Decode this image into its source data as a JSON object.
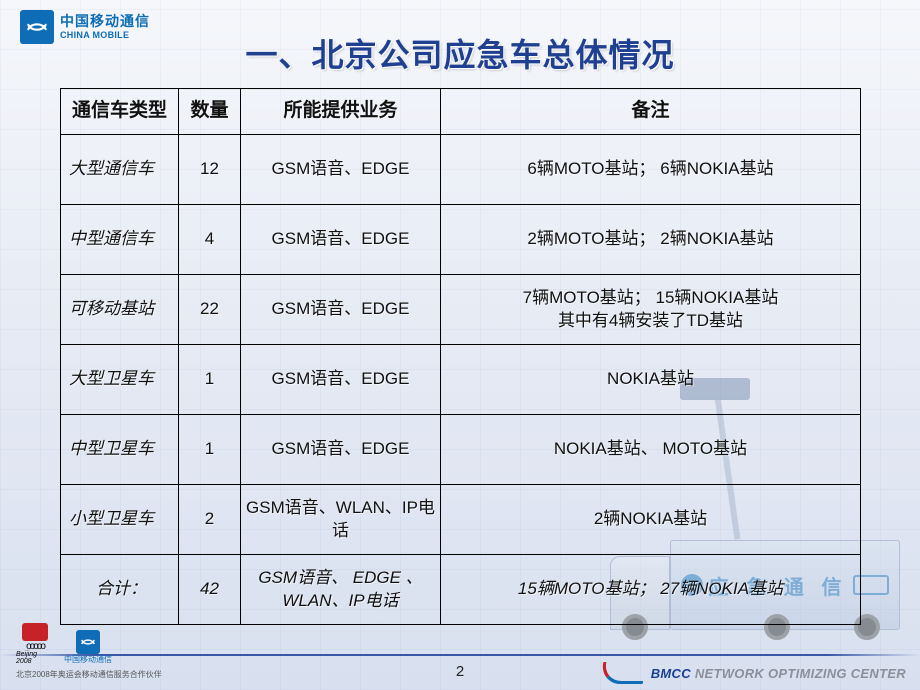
{
  "brand": {
    "cn": "中国移动通信",
    "en": "CHINA MOBILE"
  },
  "title": "一、北京公司应急车总体情况",
  "table": {
    "columns": [
      "通信车类型",
      "数量",
      "所能提供业务",
      "备注"
    ],
    "rows": [
      {
        "type": "大型通信车",
        "qty": "12",
        "service": "GSM语音、EDGE",
        "note": "6辆MOTO基站； 6辆NOKIA基站"
      },
      {
        "type": "中型通信车",
        "qty": "4",
        "service": "GSM语音、EDGE",
        "note": "2辆MOTO基站； 2辆NOKIA基站"
      },
      {
        "type": "可移动基站",
        "qty": "22",
        "service": "GSM语音、EDGE",
        "note": "7辆MOTO基站； 15辆NOKIA基站\n其中有4辆安装了TD基站"
      },
      {
        "type": "大型卫星车",
        "qty": "1",
        "service": "GSM语音、EDGE",
        "note": "NOKIA基站"
      },
      {
        "type": "中型卫星车",
        "qty": "1",
        "service": "GSM语音、EDGE",
        "note": "NOKIA基站、 MOTO基站"
      },
      {
        "type": "小型卫星车",
        "qty": "2",
        "service": "GSM语音、WLAN、IP电话",
        "note": "2辆NOKIA基站"
      }
    ],
    "total": {
      "type": "合计：",
      "qty": "42",
      "service": "GSM语音、 EDGE 、WLAN、IP电话",
      "note": "15辆MOTO基站； 27辆NOKIA基站"
    }
  },
  "page_number": "2",
  "footer_brand": {
    "main": "BMCC ",
    "rest": "NETWORK OPTIMIZING CENTER"
  },
  "bottom_left": {
    "beijing_label": "Beijing 2008",
    "cm_label": "中国移动通信",
    "caption": "北京2008年奥运会移动通信服务合作伙伴"
  },
  "truck_label": "应 急 通 信",
  "colors": {
    "title": "#1f3f91",
    "brand": "#0e6db6",
    "border": "#000000",
    "accent_red": "#c7222a"
  }
}
